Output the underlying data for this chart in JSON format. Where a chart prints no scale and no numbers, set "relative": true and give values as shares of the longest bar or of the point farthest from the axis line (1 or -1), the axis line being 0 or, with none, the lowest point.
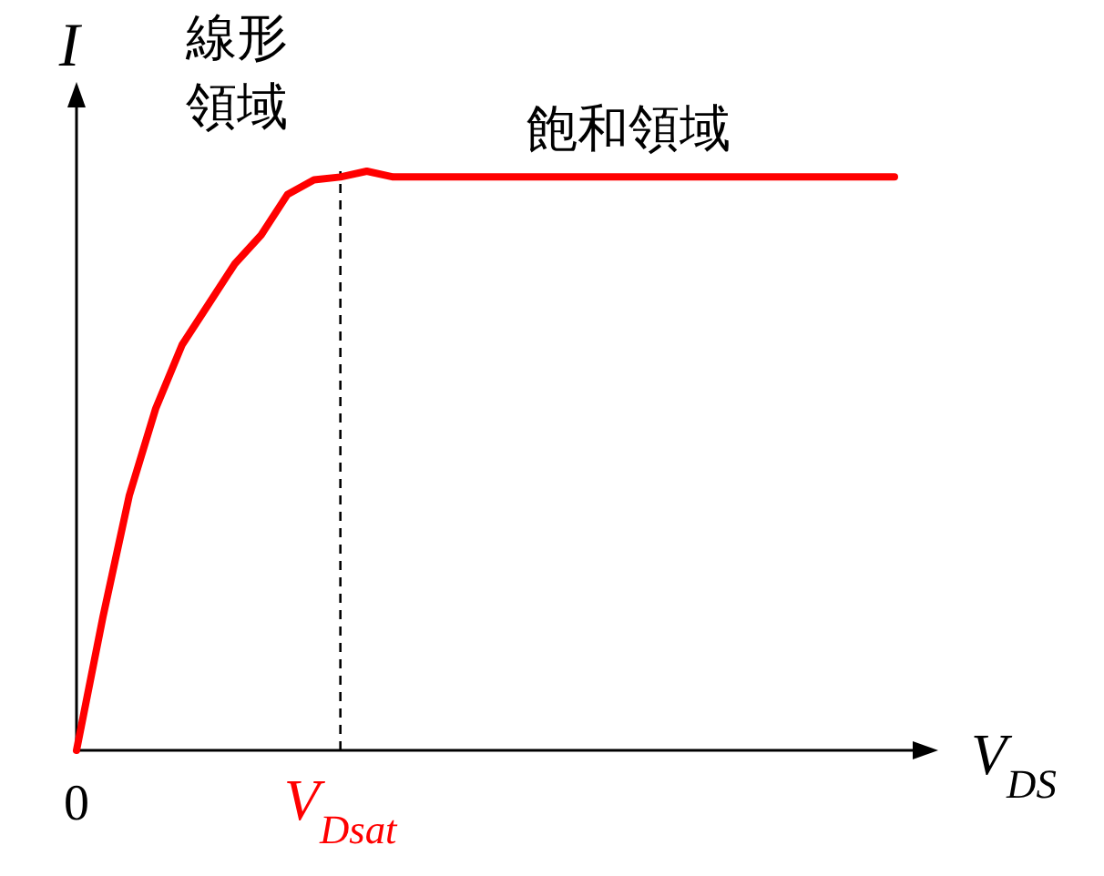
{
  "chart_data": {
    "type": "line",
    "relative": true,
    "xlabel": "V$_{DS}$",
    "ylabel": "I",
    "annotations": [
      "線形領域",
      "飽和領域"
    ],
    "categories": [
      "0",
      null,
      null,
      null,
      null,
      null,
      null,
      null,
      null,
      null,
      "V$_{Dsat}$",
      null,
      null,
      null,
      null,
      null,
      null,
      null,
      null,
      null,
      null,
      null,
      null,
      null,
      null,
      null,
      null,
      null,
      null,
      null,
      null,
      null
    ],
    "ref_lines": [
      {
        "axis": "x",
        "value": "V$_{Dsat}$",
        "label": null,
        "color": "#000000",
        "line_style": "dashed"
      }
    ],
    "series": [
      {
        "color": "#ff0000",
        "values": [
          0,
          0.23,
          0.44,
          0.59,
          0.7,
          0.77,
          0.84,
          0.89,
          0.96,
          0.985,
          0.99,
          1.0,
          0.99,
          0.99,
          0.99,
          0.99,
          0.99,
          0.99,
          0.99,
          0.99,
          0.99,
          0.99,
          0.99,
          0.99,
          0.99,
          0.99,
          0.99,
          0.99,
          0.99,
          0.99,
          0.99,
          0.99
        ]
      }
    ]
  }
}
